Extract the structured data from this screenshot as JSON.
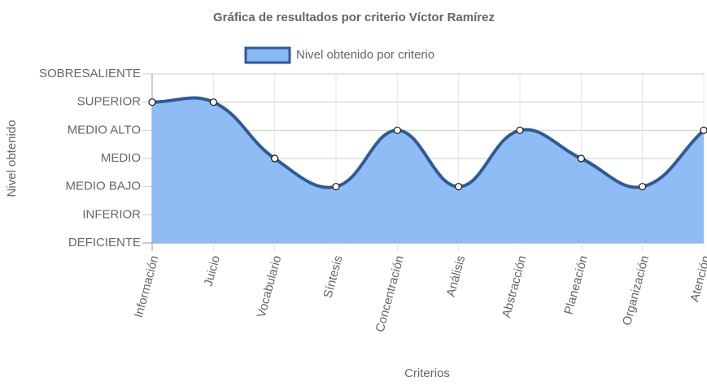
{
  "chart_data": {
    "type": "area",
    "title": "Gráfica de resultados por criterio Víctor Ramírez",
    "x_label": "Criterios",
    "y_label": "Nivel obtenido",
    "categories": [
      "Información",
      "Juicio",
      "Vocabulario",
      "Síntesis",
      "Concentración",
      "Análisis",
      "Abstracción",
      "Planeación",
      "Organización",
      "Atención"
    ],
    "series": [
      {
        "name": "Nivel obtenido por criterio",
        "color": "#2f5b94",
        "fill": "#8ab8f5",
        "values": [
          5,
          5,
          3,
          2,
          4,
          2,
          4,
          3,
          2,
          4
        ]
      }
    ],
    "ylim": [
      0,
      6
    ],
    "yticks": [
      {
        "value": 0,
        "label": "DEFICIENTE"
      },
      {
        "value": 1,
        "label": "INFERIOR"
      },
      {
        "value": 2,
        "label": "MEDIO BAJO"
      },
      {
        "value": 3,
        "label": "MEDIO"
      },
      {
        "value": 4,
        "label": "MEDIO ALTO"
      },
      {
        "value": 5,
        "label": "SUPERIOR"
      },
      {
        "value": 6,
        "label": "SOBRESALIENTE"
      }
    ],
    "grid": true
  }
}
